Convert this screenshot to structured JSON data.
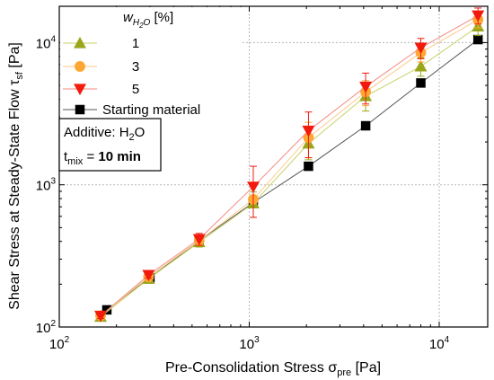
{
  "chart_data": {
    "type": "scatter",
    "xlabel": "Pre-Consolidation Stress σ",
    "xlabel_sub": "pre",
    "xlabel_unit": " [Pa]",
    "ylabel": "Shear Stress at Steady-State Flow τ",
    "ylabel_sub": "sf",
    "ylabel_unit": " [Pa]",
    "x_scale": "log",
    "y_scale": "log",
    "xlim": [
      100,
      18000
    ],
    "ylim": [
      100,
      18000
    ],
    "x_ticks": [
      {
        "value": 100,
        "base": "10",
        "exp": "2"
      },
      {
        "value": 1000,
        "base": "10",
        "exp": "3"
      },
      {
        "value": 10000,
        "base": "10",
        "exp": "4"
      }
    ],
    "y_ticks": [
      {
        "value": 100,
        "base": "10",
        "exp": "2"
      },
      {
        "value": 1000,
        "base": "10",
        "exp": "3"
      },
      {
        "value": 10000,
        "base": "10",
        "exp": "4"
      }
    ],
    "grid": "dotted at major ticks",
    "legend": {
      "title_w": "w",
      "title_sub": "H",
      "title_sub2": "2",
      "title_sub3": "O",
      "title_unit": " [%]",
      "placement": "top-left"
    },
    "annotation": {
      "line1": "Additive: H",
      "line1_sub": "2",
      "line1_end": "O",
      "line2_t": "t",
      "line2_sub": "mix",
      "line2_eq": " = ",
      "line2_val": "10 min"
    },
    "series": [
      {
        "name": "1",
        "marker": "triangle-up",
        "color": "#99A61A",
        "line_color": "#C8D16A",
        "points": [
          {
            "x": 165,
            "y": 118,
            "err": 6
          },
          {
            "x": 295,
            "y": 218,
            "err": 12
          },
          {
            "x": 545,
            "y": 395,
            "err": 30
          },
          {
            "x": 1050,
            "y": 740,
            "err": 150
          },
          {
            "x": 2050,
            "y": 1950,
            "err": 450
          },
          {
            "x": 4100,
            "y": 4200,
            "err": 900
          },
          {
            "x": 8000,
            "y": 6800,
            "err": 1000
          },
          {
            "x": 16000,
            "y": 13000,
            "err": 1800
          }
        ]
      },
      {
        "name": "3",
        "marker": "circle",
        "color": "#FFA733",
        "line_color": "#FFC98A",
        "points": [
          {
            "x": 165,
            "y": 120,
            "err": 5
          },
          {
            "x": 295,
            "y": 225,
            "err": 10
          },
          {
            "x": 545,
            "y": 405,
            "err": 30
          },
          {
            "x": 1050,
            "y": 790,
            "err": 200
          },
          {
            "x": 2050,
            "y": 2150,
            "err": 600
          },
          {
            "x": 4100,
            "y": 4500,
            "err": 900
          },
          {
            "x": 8000,
            "y": 8500,
            "err": 1200
          },
          {
            "x": 16000,
            "y": 14500,
            "err": 1800
          }
        ]
      },
      {
        "name": "5",
        "marker": "triangle-down",
        "color": "#F21A0D",
        "line_color": "#F48A80",
        "points": [
          {
            "x": 165,
            "y": 120,
            "err": 5
          },
          {
            "x": 295,
            "y": 232,
            "err": 12
          },
          {
            "x": 545,
            "y": 415,
            "err": 40
          },
          {
            "x": 1050,
            "y": 970,
            "err": 380
          },
          {
            "x": 2050,
            "y": 2400,
            "err": 850
          },
          {
            "x": 4100,
            "y": 4900,
            "err": 1200
          },
          {
            "x": 8000,
            "y": 9200,
            "err": 1500
          },
          {
            "x": 16000,
            "y": 15500,
            "err": 2000
          }
        ]
      },
      {
        "name": "Starting material",
        "marker": "square",
        "color": "#000000",
        "line_color": "#555555",
        "points": [
          {
            "x": 178,
            "y": 132,
            "err": 0
          },
          {
            "x": 300,
            "y": 222,
            "err": 0
          },
          {
            "x": 545,
            "y": 405,
            "err": 0
          },
          {
            "x": 1050,
            "y": 750,
            "err": 0
          },
          {
            "x": 2050,
            "y": 1350,
            "err": 0
          },
          {
            "x": 4100,
            "y": 2600,
            "err": 0
          },
          {
            "x": 8000,
            "y": 5200,
            "err": 0
          },
          {
            "x": 16000,
            "y": 10500,
            "err": 0
          }
        ]
      }
    ]
  }
}
